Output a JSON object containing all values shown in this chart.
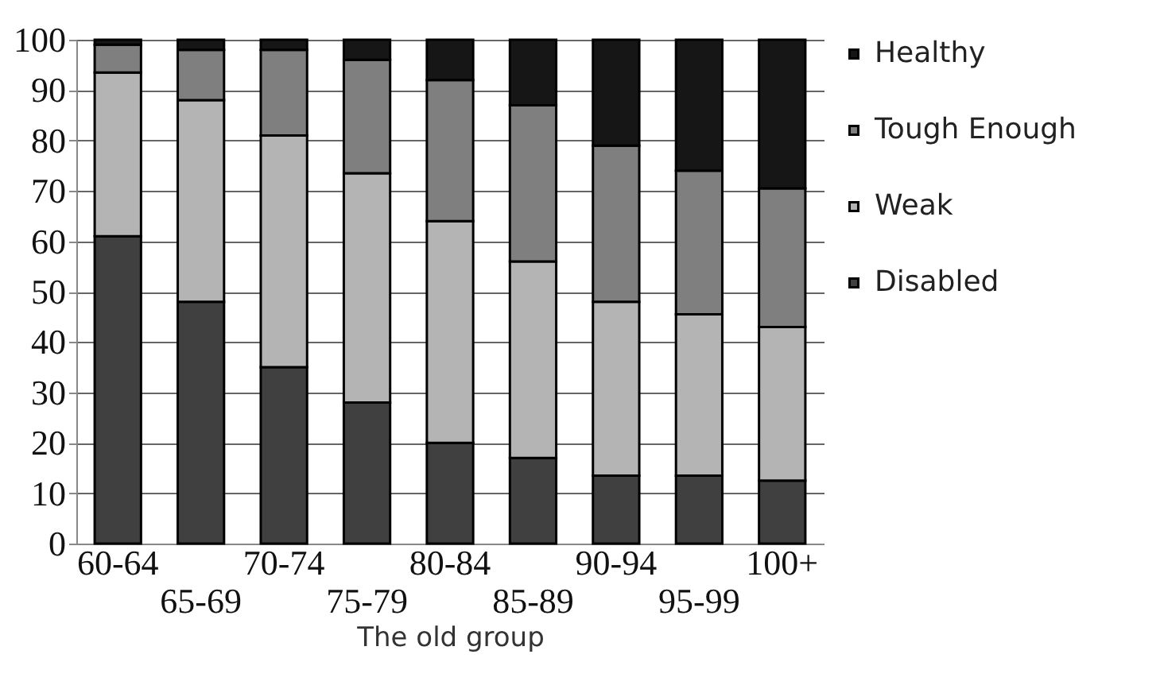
{
  "chart_data": {
    "type": "bar",
    "stacked": true,
    "xlabel": "The old group",
    "categories": [
      "60-64",
      "65-69",
      "70-74",
      "75-79",
      "80-84",
      "85-89",
      "90-94",
      "95-99",
      "100+"
    ],
    "series": [
      {
        "name": "Disabled",
        "color": "#404040",
        "values": [
          61,
          48,
          35,
          28,
          20,
          17,
          13.5,
          13.5,
          12.5
        ]
      },
      {
        "name": "Weak",
        "color": "#b4b4b4",
        "values": [
          32.5,
          40,
          46,
          45.5,
          44,
          39,
          34.5,
          32,
          30.5
        ]
      },
      {
        "name": "Tough Enough",
        "color": "#7f7f7f",
        "values": [
          5.5,
          10,
          17,
          22.5,
          28,
          31,
          31,
          28.5,
          27.5
        ]
      },
      {
        "name": "Healthy",
        "color": "#161616",
        "values": [
          1,
          2,
          2,
          4,
          8,
          13,
          21,
          26,
          29.5
        ]
      }
    ],
    "ylim": [
      0,
      100
    ],
    "yticks": [
      0,
      10,
      20,
      30,
      40,
      50,
      60,
      70,
      80,
      90,
      100
    ],
    "grid": "y",
    "legend": "right"
  }
}
